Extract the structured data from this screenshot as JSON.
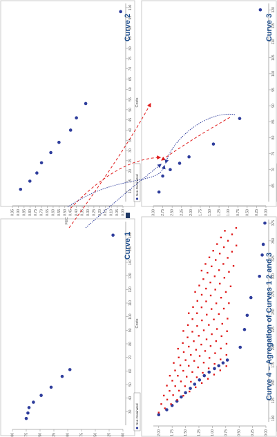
{
  "chart_data": [
    {
      "id": "curve1",
      "type": "scatter",
      "title": "Curve 1",
      "xlabel": "Costs",
      "ylabel": "FEC",
      "xlim": [
        20,
        170
      ],
      "ylim": [
        0.0,
        2.0
      ],
      "xticks": [
        "30",
        "40",
        "50",
        "60",
        "70",
        "80",
        "90",
        "100",
        "110",
        "120",
        "130",
        "140",
        "150",
        "160"
      ],
      "yticks": [
        "0.00",
        "0.25",
        "0.50",
        "0.75",
        "1.00",
        "1.25",
        "1.50",
        "1.75",
        "2.00"
      ],
      "grid": false,
      "legend": "bottom-right",
      "series": [
        {
          "name": "Non-Dominated",
          "color": "#2e3d9c",
          "points": [
            [
              25,
              1.75
            ],
            [
              29,
              1.72
            ],
            [
              33,
              1.7
            ],
            [
              37,
              1.62
            ],
            [
              42,
              1.48
            ],
            [
              48,
              1.3
            ],
            [
              56,
              1.1
            ],
            [
              61,
              0.96
            ],
            [
              160,
              0.18
            ]
          ]
        }
      ]
    },
    {
      "id": "curve2",
      "type": "scatter",
      "title": "Curve 2",
      "xlabel": "Costs",
      "ylabel": "FEC",
      "xlim": [
        5,
        102
      ],
      "ylim": [
        0.0,
        0.95
      ],
      "xticks": [
        "10",
        "15",
        "20",
        "25",
        "30",
        "35",
        "40",
        "45",
        "50",
        "55",
        "60",
        "65",
        "70",
        "75",
        "80",
        "85",
        "90",
        "95",
        "100"
      ],
      "yticks": [
        "0.00",
        "0.05",
        "0.10",
        "0.15",
        "0.20",
        "0.25",
        "0.30",
        "0.35",
        "0.40",
        "0.45",
        "0.50",
        "0.55",
        "0.60",
        "0.65",
        "0.70",
        "0.75",
        "0.80",
        "0.85",
        "0.90",
        "0.95"
      ],
      "grid": false,
      "legend": "bottom-right",
      "series": [
        {
          "name": "Non-Dominated",
          "color": "#2e3d9c",
          "points": [
            [
              11,
              0.88
            ],
            [
              15,
              0.8
            ],
            [
              19,
              0.74
            ],
            [
              24,
              0.7
            ],
            [
              29,
              0.62
            ],
            [
              34,
              0.55
            ],
            [
              40,
              0.45
            ],
            [
              46,
              0.4
            ],
            [
              53,
              0.32
            ],
            [
              98,
              0.02
            ]
          ]
        }
      ]
    },
    {
      "id": "curve3",
      "type": "scatter",
      "title": "Curve 3",
      "xlabel": "Costs",
      "ylabel": "FEC",
      "xlim": [
        60,
        122
      ],
      "ylim": [
        0.0,
        3.0
      ],
      "xticks": [
        "65",
        "70",
        "75",
        "80",
        "85",
        "90",
        "95",
        "100",
        "105",
        "110",
        "115",
        "120"
      ],
      "yticks": [
        "0.00",
        "0.25",
        "0.50",
        "0.75",
        "1.00",
        "1.25",
        "1.50",
        "1.75",
        "2.00",
        "2.25",
        "2.50",
        "2.75",
        "3.00"
      ],
      "grid": false,
      "legend": "bottom-right",
      "series": [
        {
          "name": "Non-Dominated",
          "color": "#2e3d9c",
          "points": [
            [
              63,
              2.85
            ],
            [
              68,
              2.75
            ],
            [
              70,
              2.55
            ],
            [
              72,
              2.3
            ],
            [
              74,
              2.05
            ],
            [
              78,
              1.4
            ],
            [
              86,
              0.7
            ],
            [
              120,
              0.15
            ]
          ]
        }
      ]
    },
    {
      "id": "curve4",
      "type": "scatter",
      "title": "Curve 4 – Agregation of Curves 1 2 and 3",
      "xlabel": "Costs",
      "ylabel": "FEC",
      "xlim": [
        95,
        380
      ],
      "ylim": [
        0.0,
        2.1
      ],
      "xticks": [
        "100",
        "125",
        "150",
        "175",
        "200",
        "225",
        "250",
        "275",
        "300",
        "325",
        "350",
        "375"
      ],
      "yticks": [
        "0.00",
        "0.25",
        "0.50",
        "0.75",
        "1.00",
        "1.25",
        "1.50",
        "1.75",
        "2.00"
      ],
      "grid": false,
      "legend": "bottom-right",
      "series": [
        {
          "name": "Non-Dominated",
          "color": "#2e3d9c",
          "points": [
            [
              105,
              2.0
            ],
            [
              112,
              1.85
            ],
            [
              118,
              1.75
            ],
            [
              124,
              1.66
            ],
            [
              130,
              1.58
            ],
            [
              136,
              1.5
            ],
            [
              142,
              1.41
            ],
            [
              148,
              1.33
            ],
            [
              154,
              1.24
            ],
            [
              160,
              1.15
            ],
            [
              165,
              1.06
            ],
            [
              170,
              0.96
            ],
            [
              174,
              0.88
            ],
            [
              178,
              0.8
            ],
            [
              182,
              0.72
            ],
            [
              200,
              0.48
            ],
            [
              225,
              0.4
            ],
            [
              245,
              0.35
            ],
            [
              270,
              0.28
            ],
            [
              300,
              0.12
            ],
            [
              330,
              0.07
            ],
            [
              345,
              0.05
            ],
            [
              375,
              0.02
            ]
          ]
        },
        {
          "name": "Dominated",
          "color": "#e01b1b",
          "generated": true
        }
      ]
    }
  ]
}
